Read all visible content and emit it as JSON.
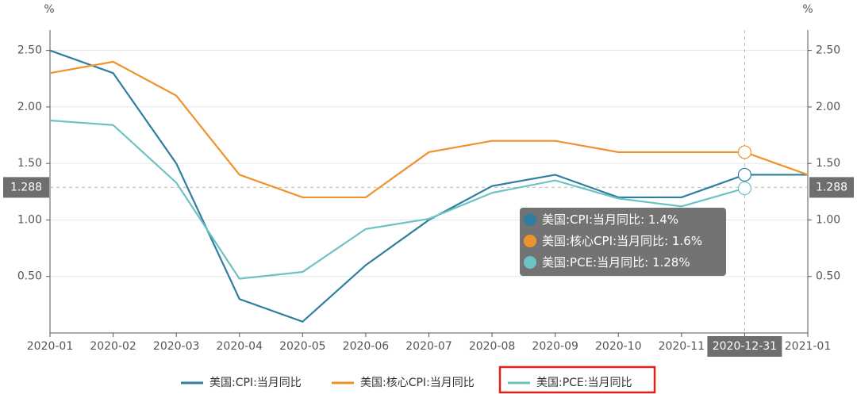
{
  "chart_data": {
    "type": "line",
    "yunit": "%",
    "y2unit": "%",
    "categories": [
      "2020-01",
      "2020-02",
      "2020-03",
      "2020-04",
      "2020-05",
      "2020-06",
      "2020-07",
      "2020-08",
      "2020-09",
      "2020-10",
      "2020-11",
      "2020-12-31",
      "2021-01"
    ],
    "series": [
      {
        "name": "美国:CPI:当月同比",
        "color": "#2f7ea1",
        "values": [
          2.5,
          2.3,
          1.5,
          0.3,
          0.1,
          0.6,
          1.0,
          1.3,
          1.4,
          1.2,
          1.2,
          1.4,
          1.4
        ]
      },
      {
        "name": "美国:核心CPI:当月同比",
        "color": "#f0922b",
        "values": [
          2.3,
          2.4,
          2.1,
          1.4,
          1.2,
          1.2,
          1.6,
          1.7,
          1.7,
          1.6,
          1.6,
          1.6,
          1.4
        ]
      },
      {
        "name": "美国:PCE:当月同比",
        "color": "#6cc3c3",
        "values": [
          1.88,
          1.84,
          1.33,
          0.48,
          0.54,
          0.92,
          1.01,
          1.24,
          1.35,
          1.19,
          1.12,
          1.28,
          null
        ]
      }
    ],
    "ylim": [
      0,
      2.68
    ],
    "yticks": [
      {
        "value": 0.5,
        "label": "0.50"
      },
      {
        "value": 1.0,
        "label": "1.00"
      },
      {
        "value": 1.5,
        "label": "1.50"
      },
      {
        "value": 2.0,
        "label": "2.00"
      },
      {
        "value": 2.5,
        "label": "2.50"
      }
    ],
    "y2lim": [
      0,
      2.68
    ],
    "y2ticks": [
      {
        "value": 0.5,
        "label": "0.50"
      },
      {
        "value": 1.0,
        "label": "1.00"
      },
      {
        "value": 1.5,
        "label": "1.50"
      },
      {
        "value": 2.0,
        "label": "2.00"
      },
      {
        "value": 2.5,
        "label": "2.50"
      }
    ],
    "grid": true,
    "hover_index": 11,
    "axis_pointer": 1.288,
    "tooltip": {
      "values": [
        1.4,
        1.6,
        1.28
      ],
      "value_labels": [
        "1.4%",
        "1.6%",
        "1.28%"
      ]
    },
    "legend": "bottom",
    "highlighted_legend": 2
  }
}
